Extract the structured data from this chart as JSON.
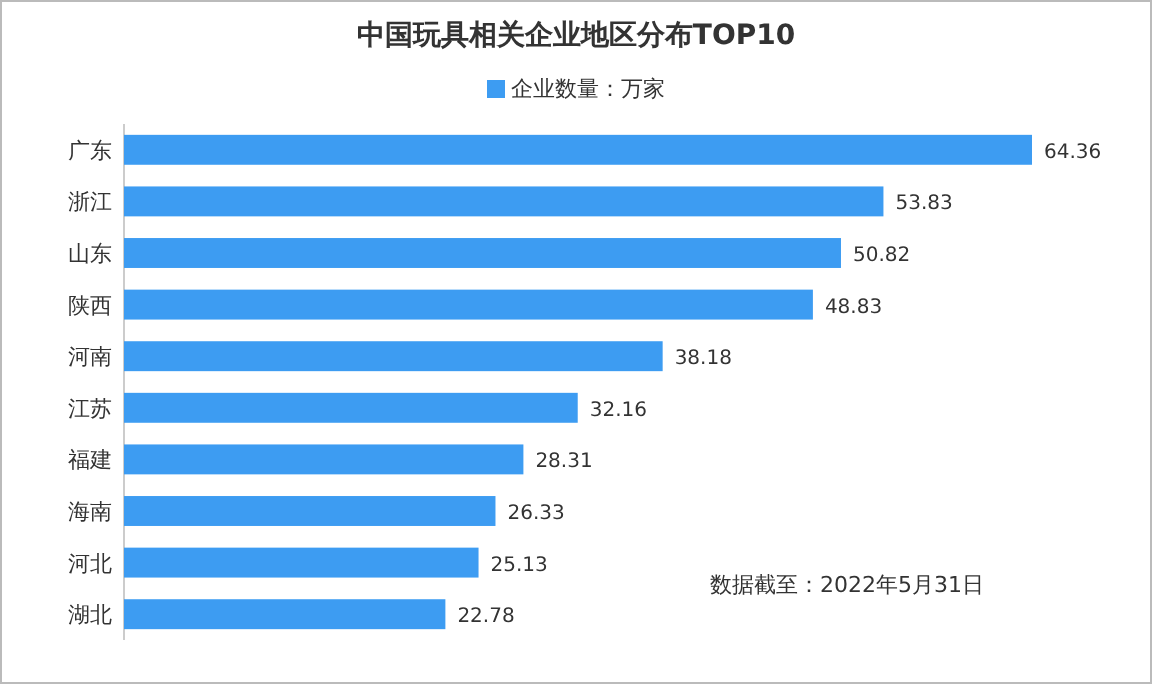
{
  "chart_data": {
    "type": "bar",
    "orientation": "horizontal",
    "title": "中国玩具相关企业地区分布TOP10",
    "categories": [
      "广东",
      "浙江",
      "山东",
      "陕西",
      "河南",
      "江苏",
      "福建",
      "海南",
      "河北",
      "湖北"
    ],
    "series": [
      {
        "name": "企业数量：万家",
        "color": "#3d9cf2",
        "values": [
          64.36,
          53.83,
          50.82,
          48.83,
          38.18,
          32.16,
          28.31,
          26.33,
          25.13,
          22.78
        ]
      }
    ],
    "data_labels": true,
    "legend": "top",
    "annotations": [
      "数据截至：2022年5月31日"
    ]
  }
}
